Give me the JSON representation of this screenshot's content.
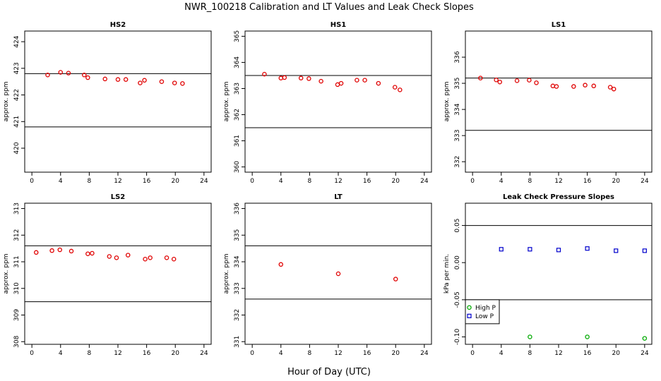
{
  "title": "NWR_100218  Calibration and LT Values and Leak Check Slopes",
  "x_axis_title": "Hour of Day (UTC)",
  "chart_data": [
    {
      "type": "scatter",
      "title": "HS2",
      "ylabel": "approx. ppm",
      "xlim": [
        -1,
        25
      ],
      "xticks": [
        0,
        4,
        8,
        12,
        16,
        20,
        24
      ],
      "ylim": [
        419.1,
        424.4
      ],
      "yticks": [
        420,
        421,
        422,
        423,
        424
      ],
      "hlines": [
        422.8,
        420.8
      ],
      "series": [
        {
          "color": "#e00000",
          "marker": "circle",
          "x": [
            2.2,
            4.0,
            5.1,
            7.3,
            7.8,
            10.2,
            12.0,
            13.1,
            15.1,
            15.7,
            18.1,
            19.9,
            21.0
          ],
          "y": [
            422.75,
            422.85,
            422.82,
            422.75,
            422.65,
            422.6,
            422.58,
            422.58,
            422.45,
            422.55,
            422.5,
            422.45,
            422.43
          ]
        }
      ]
    },
    {
      "type": "scatter",
      "title": "HS1",
      "ylabel": "approx. ppm",
      "xlim": [
        -1,
        25
      ],
      "xticks": [
        0,
        4,
        8,
        12,
        16,
        20,
        24
      ],
      "ylim": [
        359.8,
        365.2
      ],
      "yticks": [
        360,
        361,
        362,
        363,
        364,
        365
      ],
      "hlines": [
        363.5,
        361.5
      ],
      "series": [
        {
          "color": "#e00000",
          "marker": "circle",
          "x": [
            1.7,
            4.0,
            4.5,
            6.8,
            7.9,
            9.6,
            11.9,
            12.4,
            14.6,
            15.7,
            17.6,
            19.9,
            20.6
          ],
          "y": [
            363.55,
            363.4,
            363.42,
            363.4,
            363.38,
            363.28,
            363.15,
            363.2,
            363.32,
            363.32,
            363.2,
            363.05,
            362.95
          ]
        }
      ]
    },
    {
      "type": "scatter",
      "title": "LS1",
      "ylabel": "approx. ppm",
      "xlim": [
        -1,
        25
      ],
      "xticks": [
        0,
        4,
        8,
        12,
        16,
        20,
        24
      ],
      "ylim": [
        331.6,
        337.0
      ],
      "yticks": [
        332,
        333,
        334,
        335,
        336
      ],
      "hlines": [
        335.2,
        333.2
      ],
      "series": [
        {
          "color": "#e00000",
          "marker": "circle",
          "x": [
            1.1,
            3.3,
            3.8,
            6.2,
            7.9,
            8.9,
            11.2,
            11.7,
            14.1,
            15.7,
            16.9,
            19.2,
            19.7
          ],
          "y": [
            335.2,
            335.13,
            335.05,
            335.1,
            335.12,
            335.02,
            334.9,
            334.88,
            334.88,
            334.93,
            334.9,
            334.85,
            334.78
          ]
        }
      ]
    },
    {
      "type": "scatter",
      "title": "LS2",
      "ylabel": "approx. ppm",
      "xlim": [
        -1,
        25
      ],
      "xticks": [
        0,
        4,
        8,
        12,
        16,
        20,
        24
      ],
      "ylim": [
        307.9,
        313.2
      ],
      "yticks": [
        308,
        309,
        310,
        311,
        312,
        313
      ],
      "hlines": [
        311.6,
        309.5
      ],
      "series": [
        {
          "color": "#e00000",
          "marker": "circle",
          "x": [
            0.6,
            2.8,
            3.9,
            5.5,
            7.8,
            8.4,
            10.8,
            11.8,
            13.4,
            15.8,
            16.5,
            18.8,
            19.8
          ],
          "y": [
            311.35,
            311.42,
            311.45,
            311.4,
            311.3,
            311.32,
            311.2,
            311.15,
            311.25,
            311.1,
            311.15,
            311.15,
            311.1
          ]
        }
      ]
    },
    {
      "type": "scatter",
      "title": "LT",
      "ylabel": "approx. ppm",
      "xlim": [
        -1,
        25
      ],
      "xticks": [
        0,
        4,
        8,
        12,
        16,
        20,
        24
      ],
      "ylim": [
        330.9,
        336.2
      ],
      "yticks": [
        331,
        332,
        333,
        334,
        335,
        336
      ],
      "hlines": [
        334.6,
        332.6
      ],
      "series": [
        {
          "color": "#e00000",
          "marker": "circle",
          "x": [
            4.0,
            12.0,
            20.0
          ],
          "y": [
            333.9,
            333.55,
            333.35
          ]
        }
      ]
    },
    {
      "type": "scatter",
      "title": "Leak Check Pressure Slopes",
      "ylabel": "kPa per min.",
      "xlim": [
        -1,
        25
      ],
      "xticks": [
        0,
        4,
        8,
        12,
        16,
        20,
        24
      ],
      "ylim": [
        -0.11,
        0.08
      ],
      "yticks": [
        -0.1,
        -0.05,
        0.0,
        0.05
      ],
      "ytick_labels": [
        "-0.10",
        "-0.05",
        "0.00",
        "0.05"
      ],
      "hlines": [
        0.05,
        -0.05
      ],
      "legend": {
        "position": "left",
        "entries": [
          "High P",
          "Low P"
        ]
      },
      "series": [
        {
          "name": "High P",
          "color": "#00aa00",
          "marker": "circle",
          "x": [
            8,
            16,
            24
          ],
          "y": [
            -0.1,
            -0.1,
            -0.102
          ]
        },
        {
          "name": "Low P",
          "color": "#0000cc",
          "marker": "square",
          "x": [
            4,
            8,
            12,
            16,
            20,
            24
          ],
          "y": [
            0.018,
            0.018,
            0.017,
            0.019,
            0.016,
            0.016
          ]
        }
      ]
    }
  ]
}
